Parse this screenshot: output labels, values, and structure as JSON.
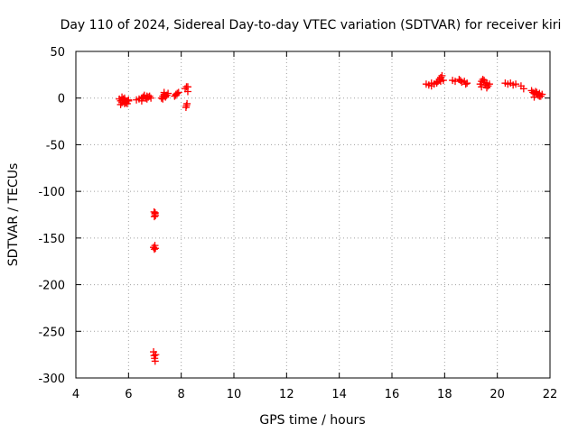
{
  "chart_data": {
    "type": "scatter",
    "title": "Day 110 of 2024, Sidereal Day-to-day VTEC variation (SDTVAR) for receiver kiri",
    "xlabel": "GPS time / hours",
    "ylabel": "SDTVAR / TECUs",
    "xlim": [
      4,
      22
    ],
    "ylim": [
      -300,
      50
    ],
    "xticks": [
      4,
      6,
      8,
      10,
      12,
      14,
      16,
      18,
      20,
      22
    ],
    "yticks": [
      50,
      0,
      -50,
      -100,
      -150,
      -200,
      -250,
      -300
    ],
    "grid": true,
    "marker": "plus",
    "color": "#ff0000",
    "series": [
      {
        "name": "SDTVAR",
        "x": [
          5.65,
          5.7,
          5.75,
          5.8,
          5.85,
          5.9,
          5.95,
          6.0,
          5.7,
          5.8,
          5.9,
          6.0,
          5.75,
          5.85,
          5.95,
          6.3,
          6.4,
          6.5,
          6.55,
          6.6,
          6.65,
          6.7,
          6.75,
          6.8,
          6.85,
          6.5,
          6.6,
          6.7,
          7.25,
          7.3,
          7.35,
          7.4,
          7.45,
          7.5,
          7.3,
          7.4,
          7.35,
          7.75,
          7.8,
          7.85,
          7.9,
          7.8,
          8.15,
          8.2,
          8.25,
          8.22,
          8.18,
          8.2,
          8.25,
          6.97,
          7.0,
          7.02,
          6.98,
          7.01,
          6.95,
          6.98,
          7.0,
          7.02,
          6.95,
          6.97,
          6.99,
          7.01,
          7.03,
          17.3,
          17.4,
          17.5,
          17.6,
          17.7,
          17.75,
          17.8,
          17.85,
          17.9,
          17.95,
          17.5,
          17.7,
          17.85,
          18.3,
          18.4,
          18.55,
          18.65,
          18.75,
          18.85,
          18.6,
          18.8,
          19.35,
          19.4,
          19.45,
          19.5,
          19.55,
          19.6,
          19.65,
          19.7,
          19.4,
          19.5,
          19.6,
          20.3,
          20.4,
          20.5,
          20.6,
          20.7,
          20.9,
          21.0,
          21.3,
          21.35,
          21.4,
          21.45,
          21.5,
          21.55,
          21.6,
          21.65,
          21.7,
          21.4,
          21.5,
          21.6
        ],
        "y": [
          -1,
          -3,
          -5,
          -2,
          0,
          -4,
          -6,
          -3,
          -7,
          -1,
          -5,
          -2,
          1,
          -6,
          -3,
          -2,
          -1,
          0,
          1,
          2,
          0,
          -1,
          1,
          2,
          0,
          -3,
          3,
          2,
          0,
          2,
          4,
          1,
          3,
          5,
          -1,
          2,
          6,
          2,
          4,
          5,
          6,
          3,
          10,
          12,
          7,
          -6,
          -10,
          -8,
          12,
          -122,
          -124,
          -126,
          -127,
          -123,
          -160,
          -162,
          -158,
          -161,
          -272,
          -276,
          -279,
          -282,
          -275,
          15,
          14,
          16,
          15,
          17,
          18,
          20,
          22,
          24,
          19,
          13,
          16,
          18,
          19,
          18,
          20,
          17,
          18,
          16,
          19,
          15,
          15,
          18,
          20,
          17,
          14,
          16,
          13,
          15,
          12,
          19,
          11,
          16,
          15,
          16,
          14,
          15,
          13,
          10,
          8,
          6,
          5,
          7,
          4,
          3,
          5,
          2,
          4,
          1,
          6,
          2
        ]
      }
    ]
  }
}
